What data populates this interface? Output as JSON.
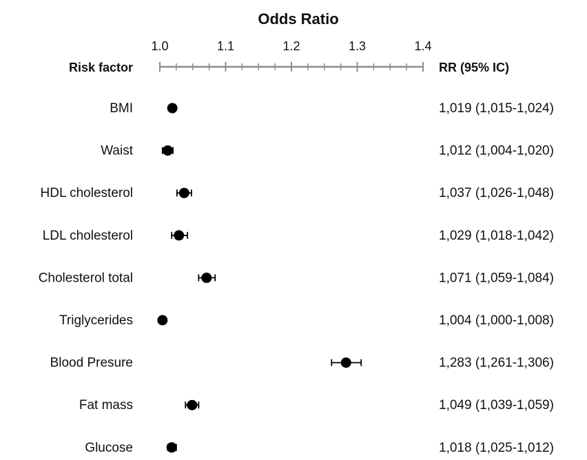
{
  "chart_data": {
    "type": "scatter",
    "title": "Odds Ratio",
    "left_header": "Risk factor",
    "right_header": "RR (95% IC)",
    "xlim": [
      1.0,
      1.4
    ],
    "ticks": [
      {
        "value": 1.0,
        "label": "1.0"
      },
      {
        "value": 1.1,
        "label": "1.1"
      },
      {
        "value": 1.2,
        "label": "1.2"
      },
      {
        "value": 1.3,
        "label": "1.3"
      },
      {
        "value": 1.4,
        "label": "1.4"
      }
    ],
    "minor_tick_step": 0.025,
    "rows": [
      {
        "label": "BMI",
        "value": 1.019,
        "low": 1.015,
        "high": 1.024,
        "text": "1,019 (1,015-1,024)"
      },
      {
        "label": "Waist",
        "value": 1.012,
        "low": 1.004,
        "high": 1.02,
        "text": "1,012 (1,004-1,020)"
      },
      {
        "label": "HDL cholesterol",
        "value": 1.037,
        "low": 1.026,
        "high": 1.048,
        "text": "1,037 (1,026-1,048)"
      },
      {
        "label": "LDL cholesterol",
        "value": 1.029,
        "low": 1.018,
        "high": 1.042,
        "text": "1,029 (1,018-1,042)"
      },
      {
        "label": "Cholesterol total",
        "value": 1.071,
        "low": 1.059,
        "high": 1.084,
        "text": "1,071 (1,059-1,084)"
      },
      {
        "label": "Triglycerides",
        "value": 1.004,
        "low": 1.0,
        "high": 1.008,
        "text": "1,004 (1,000-1,008)"
      },
      {
        "label": "Blood Presure",
        "value": 1.283,
        "low": 1.261,
        "high": 1.306,
        "text": "1,283 (1,261-1,306)"
      },
      {
        "label": "Fat mass",
        "value": 1.049,
        "low": 1.039,
        "high": 1.059,
        "text": "1,049 (1,039-1,059)"
      },
      {
        "label": "Glucose",
        "value": 1.018,
        "low": 1.012,
        "high": 1.025,
        "text": "1,018 (1,025-1,012)"
      }
    ],
    "grid": false,
    "colors": {
      "axis": "#8c8c8c",
      "marker": "#000000"
    }
  }
}
